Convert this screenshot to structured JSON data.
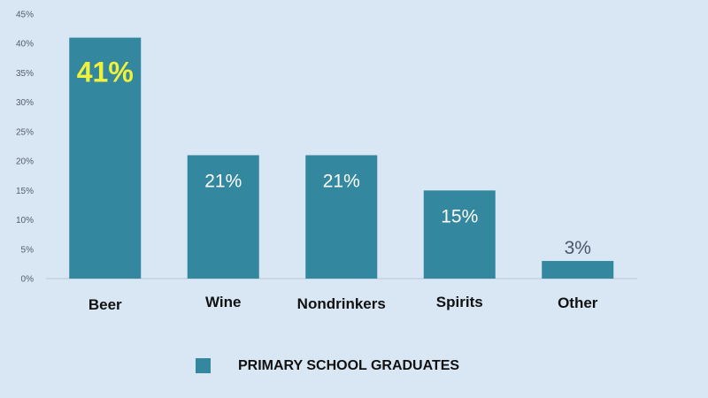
{
  "chart_data": {
    "type": "bar",
    "categories": [
      "Beer",
      "Wine",
      "Nondrinkers",
      "Spirits",
      "Other"
    ],
    "series": [
      {
        "name": "PRIMARY SCHOOL GRADUATES",
        "values": [
          41,
          21,
          21,
          15,
          3
        ],
        "labels": [
          "41%",
          "21%",
          "21%",
          "15%",
          "3%"
        ]
      }
    ],
    "y_ticks": [
      "0%",
      "5%",
      "10%",
      "15%",
      "20%",
      "25%",
      "30%",
      "35%",
      "40%",
      "45%"
    ],
    "ylim": [
      0,
      45
    ],
    "grid": false,
    "legend": "bottom-center",
    "colors": {
      "bar": "#33879e",
      "background": "#d9e7f5",
      "highlight_label": "#f0f23a",
      "value_label": "#ffffff",
      "outside_label": "#4a5566"
    }
  }
}
